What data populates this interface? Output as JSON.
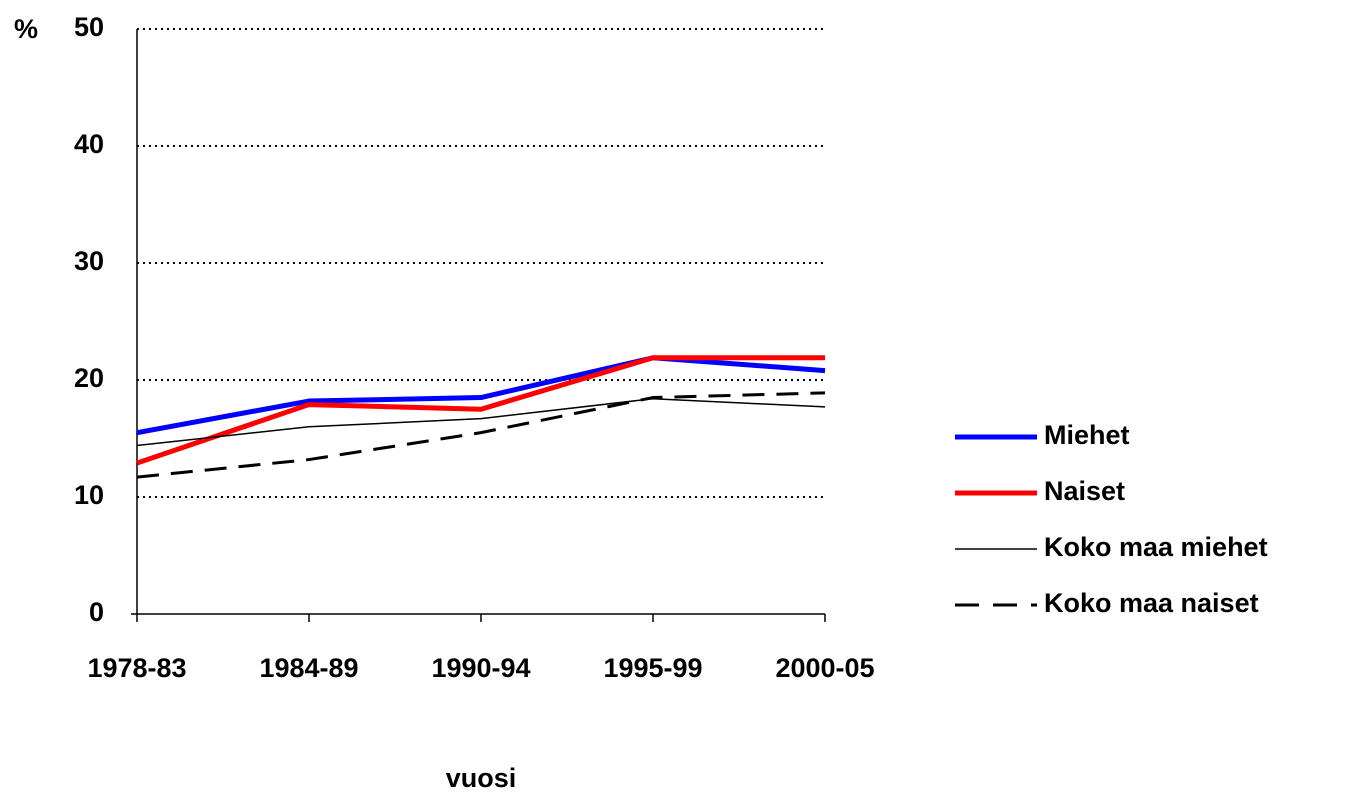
{
  "chart_data": {
    "type": "line",
    "y_label": "%",
    "x_label": "vuosi",
    "categories": [
      "1978-83",
      "1984-89",
      "1990-94",
      "1995-99",
      "2000-05"
    ],
    "series": [
      {
        "name": "Miehet",
        "color": "#0000ff",
        "width": 5,
        "dash": false,
        "values": [
          15.5,
          18.2,
          18.5,
          21.9,
          20.8
        ]
      },
      {
        "name": "Naiset",
        "color": "#ff0000",
        "width": 5,
        "dash": false,
        "values": [
          12.9,
          17.9,
          17.5,
          21.9,
          21.9
        ]
      },
      {
        "name": "Koko maa miehet",
        "color": "#000000",
        "width": 1.5,
        "dash": false,
        "values": [
          14.4,
          16.0,
          16.7,
          18.4,
          17.7
        ]
      },
      {
        "name": "Koko maa naiset",
        "color": "#000000",
        "width": 3,
        "dash": true,
        "values": [
          11.7,
          13.2,
          15.5,
          18.5,
          18.9
        ]
      }
    ],
    "ylim": [
      0,
      50
    ],
    "yticks": [
      0,
      10,
      20,
      30,
      40,
      50
    ],
    "grid": true,
    "legend": "right"
  }
}
